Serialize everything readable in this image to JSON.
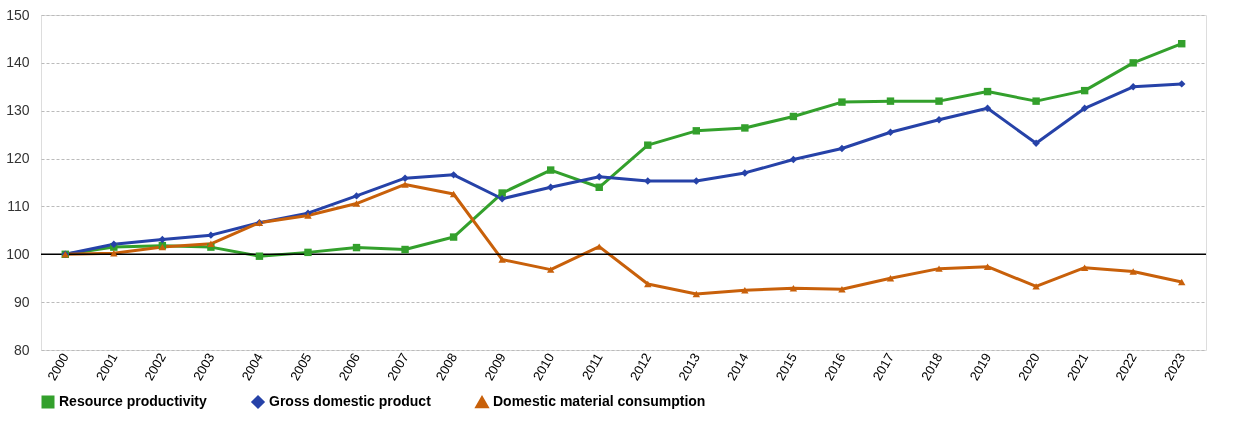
{
  "chart_data": {
    "type": "line",
    "categories": [
      "2000",
      "2001",
      "2002",
      "2003",
      "2004",
      "2005",
      "2006",
      "2007",
      "2008",
      "2009",
      "2010",
      "2011",
      "2012",
      "2013",
      "2014",
      "2015",
      "2016",
      "2017",
      "2018",
      "2019",
      "2020",
      "2021",
      "2022",
      "2023"
    ],
    "series": [
      {
        "name": "Resource productivity",
        "color": "#33a02c",
        "marker": "square",
        "values": [
          100,
          101.5,
          101.8,
          101.5,
          99.6,
          100.4,
          101.4,
          101,
          103.6,
          112.8,
          117.6,
          114,
          122.8,
          125.8,
          126.4,
          128.8,
          131.8,
          132,
          132,
          134,
          132,
          134.2,
          140,
          144
        ]
      },
      {
        "name": "Gross domestic product",
        "color": "#2642a8",
        "marker": "diamond",
        "values": [
          100,
          102.1,
          103.1,
          104,
          106.6,
          108.6,
          112.2,
          115.9,
          116.6,
          111.6,
          114,
          116.2,
          115.3,
          115.3,
          117,
          119.8,
          122.1,
          125.5,
          128.1,
          130.5,
          123.2,
          130.5,
          135,
          135.6
        ]
      },
      {
        "name": "Domestic material consumption",
        "color": "#c8600a",
        "marker": "triangle",
        "values": [
          100,
          100.2,
          101.5,
          102.2,
          106.6,
          108.1,
          110.6,
          114.6,
          112.6,
          98.9,
          96.8,
          101.6,
          93.8,
          91.7,
          92.5,
          92.9,
          92.7,
          95,
          97,
          97.4,
          93.3,
          97.2,
          96.4,
          94.2
        ]
      }
    ],
    "ylim": [
      80,
      150
    ],
    "yticks": [
      80,
      90,
      100,
      110,
      120,
      130,
      140,
      150
    ],
    "ref_lines": [
      {
        "axis": "y",
        "value": 100,
        "color": "#000000"
      }
    ],
    "grid": "y",
    "legend": "bottom",
    "line_style": "solid"
  }
}
